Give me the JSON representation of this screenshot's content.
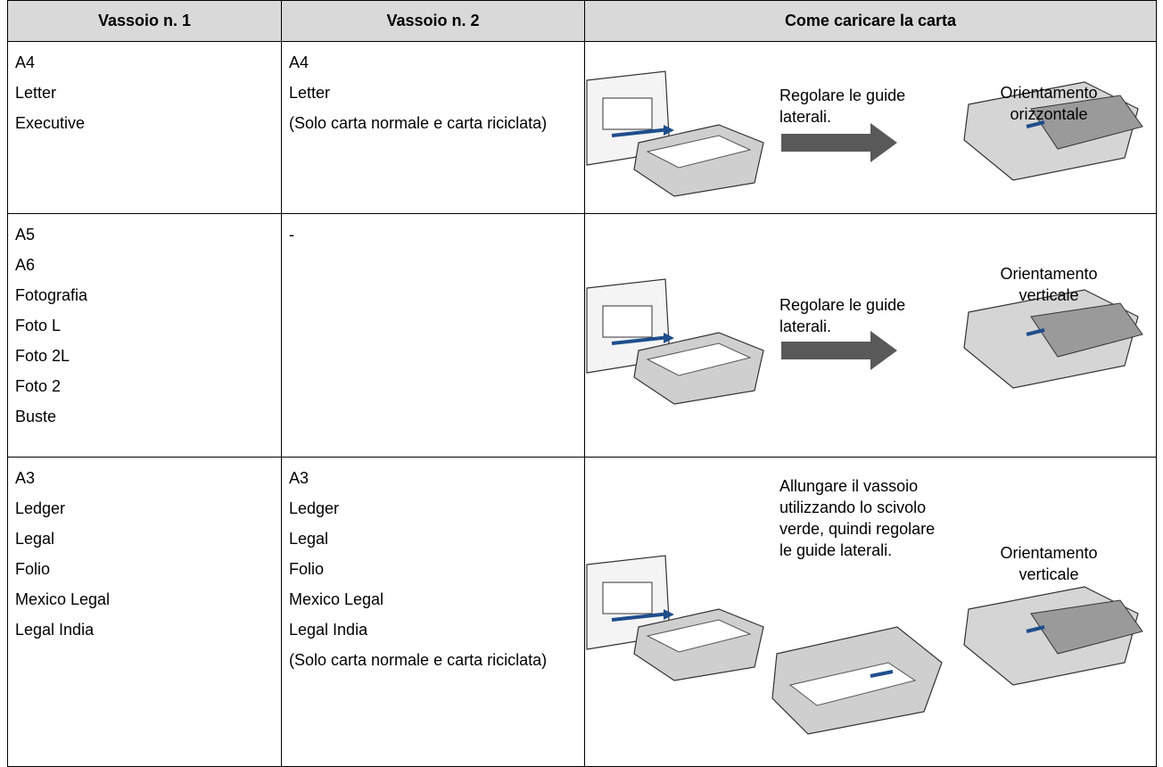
{
  "table": {
    "headers": [
      "Vassoio n. 1",
      "Vassoio n. 2",
      "Come caricare la carta"
    ],
    "rows": [
      {
        "tray1": [
          "A4",
          "Letter",
          "Executive"
        ],
        "tray2": [
          "A4",
          "Letter",
          "(Solo carta normale e carta riciclata)"
        ],
        "instruction": "Regolare le guide laterali.",
        "orientation": "Orientamento orizzontale"
      },
      {
        "tray1": [
          "A5",
          "A6",
          "Fotografia",
          "Foto L",
          "Foto 2L",
          "Foto 2",
          "Buste"
        ],
        "tray2": [
          "-"
        ],
        "instruction": "Regolare le guide laterali.",
        "orientation": "Orientamento verticale"
      },
      {
        "tray1": [
          "A3",
          "Ledger",
          "Legal",
          "Folio",
          "Mexico Legal",
          "Legal India"
        ],
        "tray2": [
          "A3",
          "Ledger",
          "Legal",
          "Folio",
          "Mexico Legal",
          "Legal India",
          "(Solo carta normale e carta riciclata)"
        ],
        "instruction": "Allungare il vassoio utilizzando lo scivolo verde, quindi regolare le guide laterali.",
        "orientation": "Orientamento verticale"
      }
    ]
  }
}
